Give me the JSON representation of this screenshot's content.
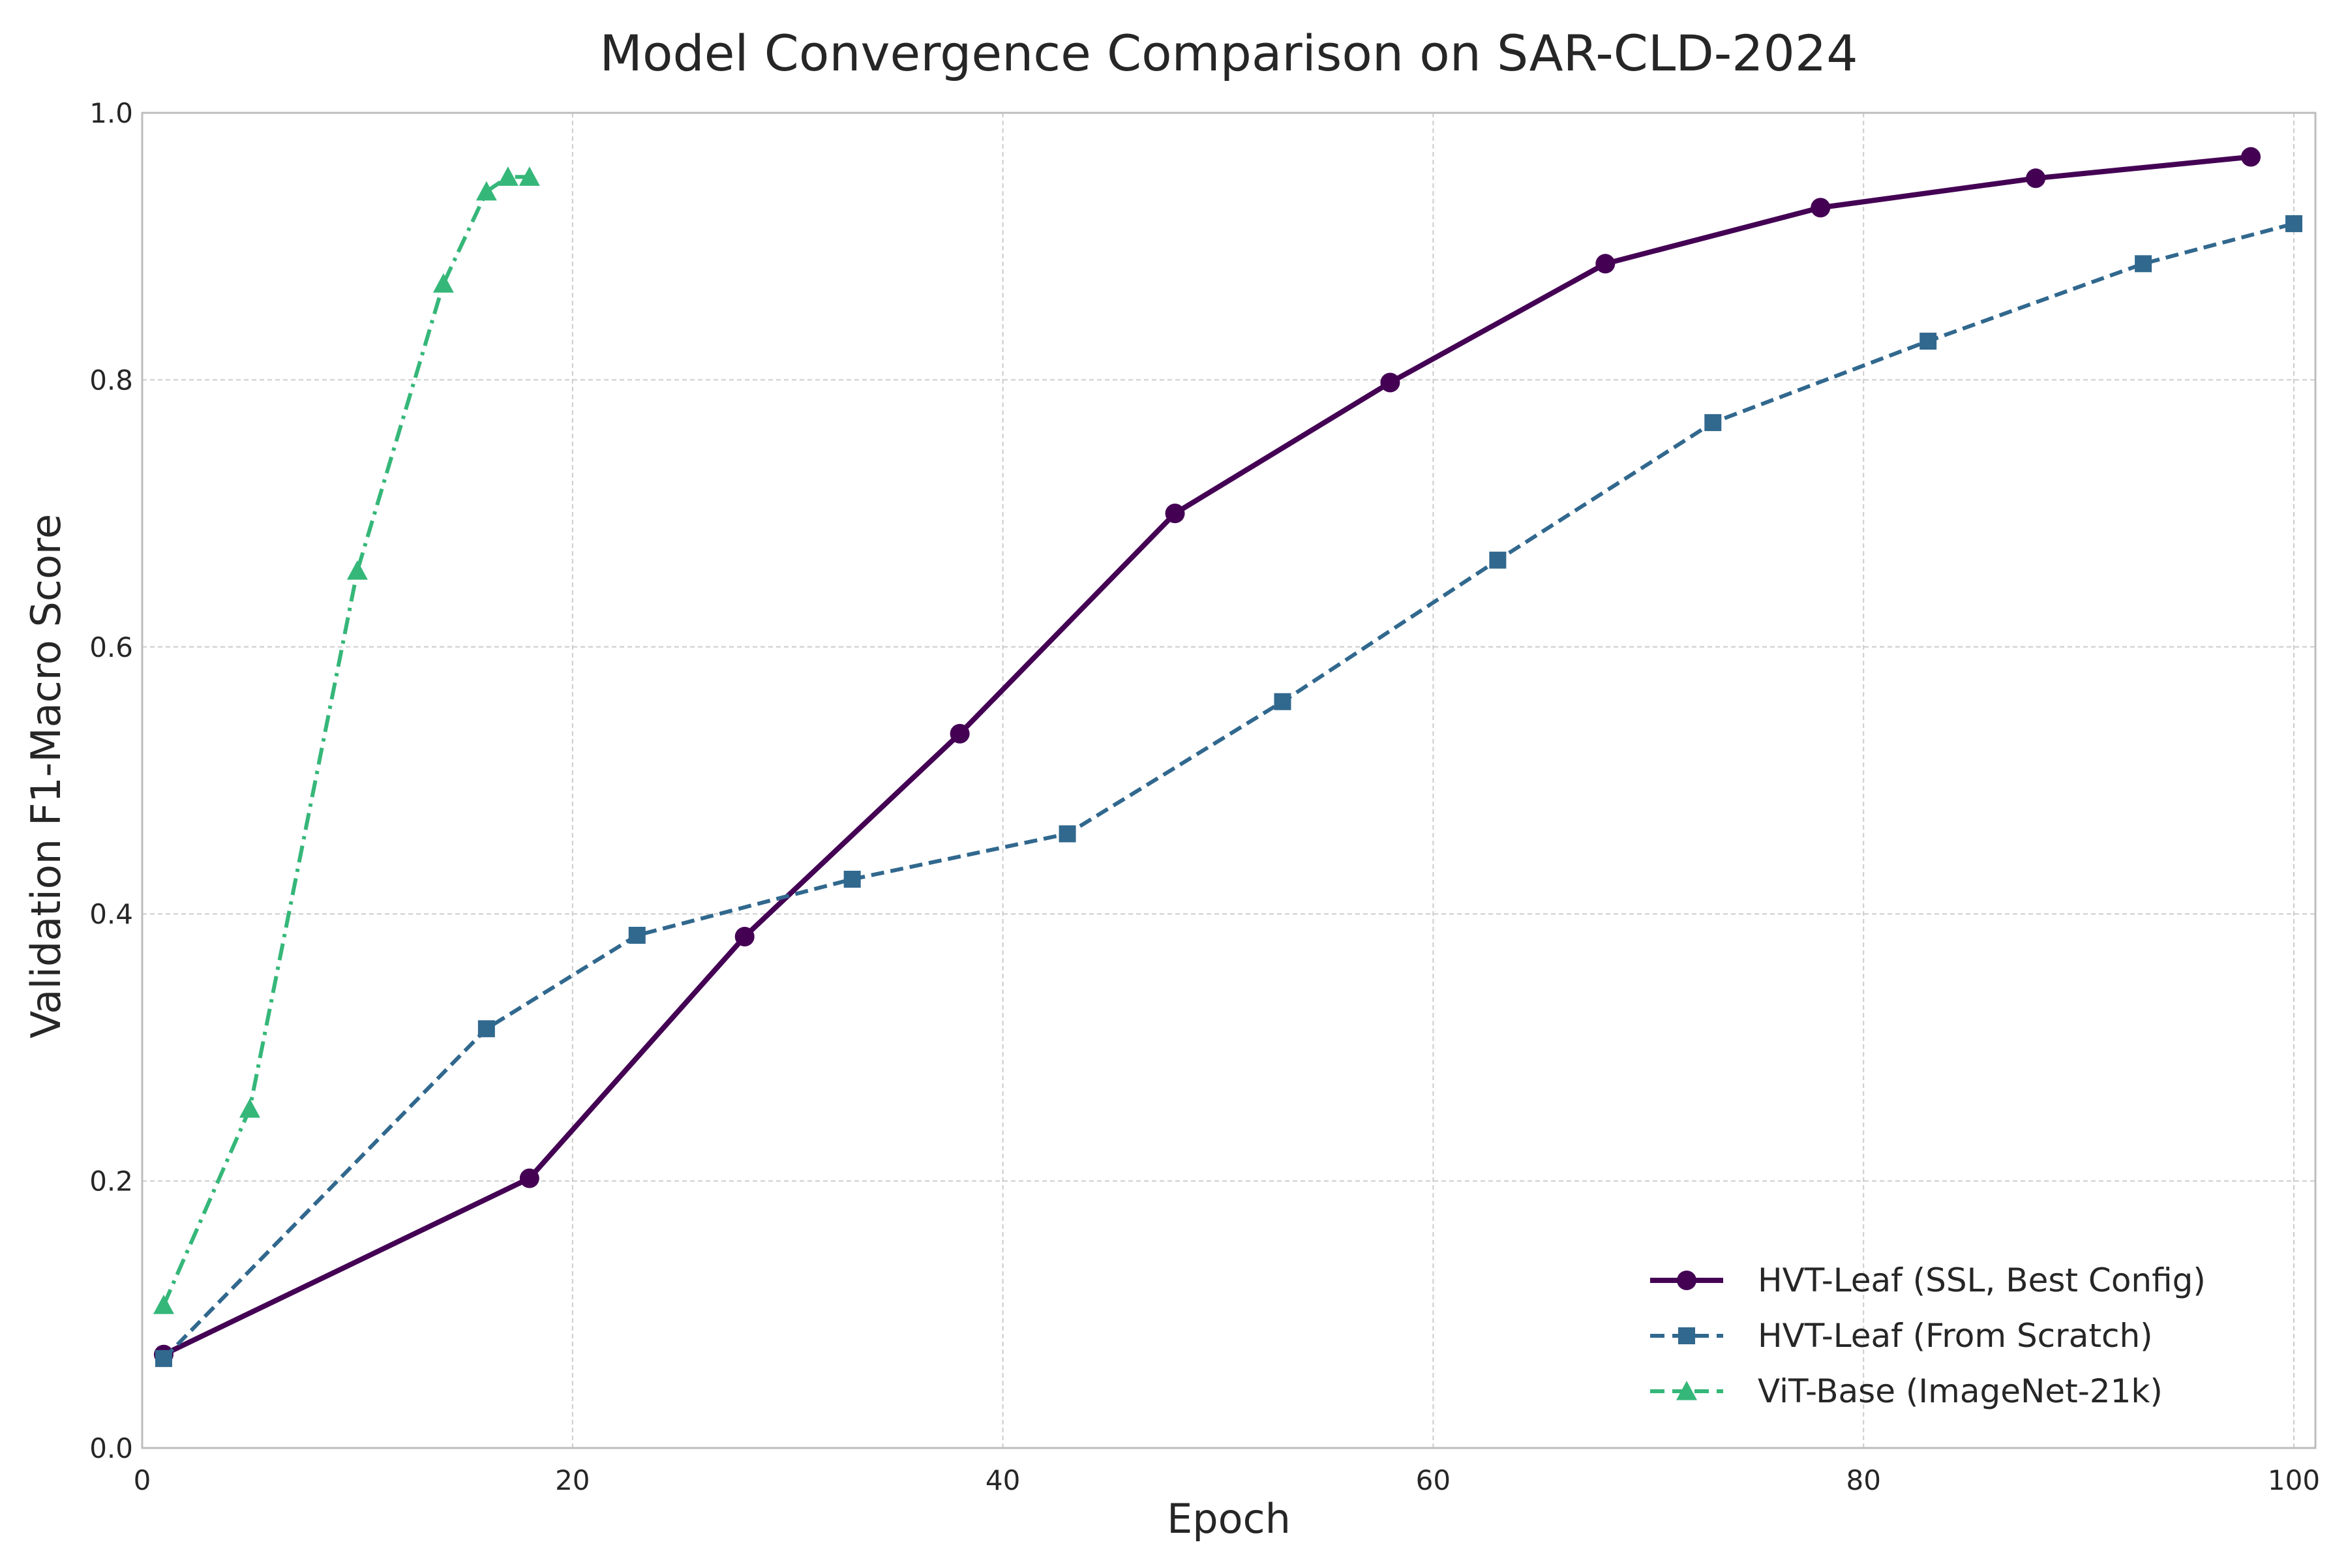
{
  "chart_data": {
    "type": "line",
    "title": "Model Convergence Comparison on SAR-CLD-2024",
    "xlabel": "Epoch",
    "ylabel": "Validation F1-Macro Score",
    "xlim": [
      0,
      101
    ],
    "ylim": [
      0.0,
      1.0
    ],
    "xticks": [
      0,
      20,
      40,
      60,
      80,
      100
    ],
    "xtick_labels": [
      "0",
      "20",
      "40",
      "60",
      "80",
      "100"
    ],
    "yticks": [
      0.0,
      0.2,
      0.4,
      0.6,
      0.8,
      1.0
    ],
    "ytick_labels": [
      "0.0",
      "0.2",
      "0.4",
      "0.6",
      "0.8",
      "1.0"
    ],
    "grid": true,
    "legend_position": "bottom-right",
    "series": [
      {
        "name": "HVT-Leaf (SSL, Best Config)",
        "color": "#440154",
        "line_style": "solid",
        "marker": "circle",
        "x": [
          1,
          18,
          28,
          38,
          48,
          58,
          68,
          78,
          88,
          98
        ],
        "y": [
          0.07,
          0.202,
          0.383,
          0.535,
          0.7,
          0.798,
          0.887,
          0.929,
          0.951,
          0.967
        ]
      },
      {
        "name": "HVT-Leaf (From Scratch)",
        "color": "#31688e",
        "line_style": "dashed",
        "marker": "square",
        "x": [
          1,
          16,
          23,
          33,
          43,
          53,
          63,
          73,
          83,
          93,
          100
        ],
        "y": [
          0.067,
          0.314,
          0.384,
          0.426,
          0.46,
          0.559,
          0.665,
          0.768,
          0.829,
          0.887,
          0.917
        ]
      },
      {
        "name": "ViT-Base (ImageNet-21k)",
        "color": "#35b779",
        "line_style": "dashdot",
        "marker": "triangle",
        "x": [
          1,
          5,
          10,
          14,
          16,
          17,
          18
        ],
        "y": [
          0.107,
          0.254,
          0.657,
          0.872,
          0.941,
          0.952,
          0.952
        ]
      }
    ]
  }
}
